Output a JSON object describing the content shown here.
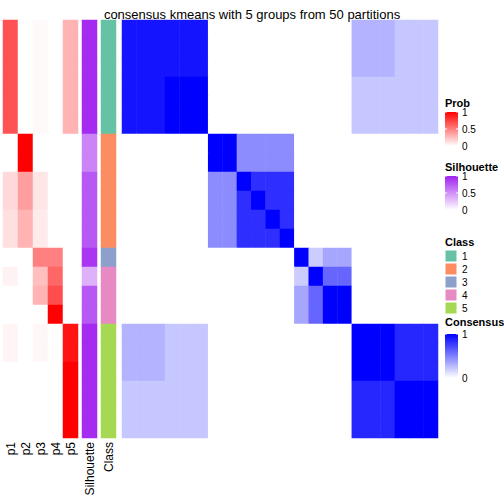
{
  "chart_data": {
    "type": "heatmap",
    "title": "consensus kmeans with 5 groups from 50 partitions",
    "columns": [
      "p1",
      "p2",
      "p3",
      "p4",
      "p5",
      "Silhouette",
      "Class"
    ],
    "prob": [
      [
        0.68,
        0,
        0.02,
        0,
        0.3
      ],
      [
        0.68,
        0,
        0.02,
        0,
        0.3
      ],
      [
        0.68,
        0,
        0.02,
        0,
        0.3
      ],
      [
        0.68,
        0,
        0.02,
        0,
        0.3
      ],
      [
        0.68,
        0,
        0.02,
        0,
        0.3
      ],
      [
        0.68,
        0,
        0.02,
        0,
        0.3
      ],
      [
        0,
        1,
        0,
        0,
        0
      ],
      [
        0,
        1,
        0,
        0,
        0
      ],
      [
        0.15,
        0.38,
        0.1,
        0,
        0
      ],
      [
        0.15,
        0.38,
        0.1,
        0,
        0
      ],
      [
        0.12,
        0.3,
        0.08,
        0,
        0
      ],
      [
        0.12,
        0.3,
        0.08,
        0,
        0
      ],
      [
        0,
        0,
        0.5,
        0.5,
        0
      ],
      [
        0.05,
        0,
        0.25,
        0.6,
        0
      ],
      [
        0,
        0,
        0.3,
        0.7,
        0
      ],
      [
        0,
        0,
        0,
        1,
        0
      ],
      [
        0.04,
        0,
        0.03,
        0,
        0.92
      ],
      [
        0.04,
        0,
        0.03,
        0,
        0.92
      ],
      [
        0,
        0,
        0,
        0,
        1
      ],
      [
        0,
        0,
        0,
        0,
        1
      ],
      [
        0,
        0,
        0,
        0,
        1
      ],
      [
        0,
        0,
        0,
        0,
        1
      ]
    ],
    "silhouette": [
      0.95,
      0.95,
      0.95,
      0.95,
      0.95,
      0.95,
      0.55,
      0.55,
      0.75,
      0.75,
      0.75,
      0.75,
      0.9,
      0.35,
      0.75,
      0.75,
      0.95,
      0.95,
      0.95,
      0.95,
      0.95,
      0.95
    ],
    "class": [
      1,
      1,
      1,
      1,
      1,
      1,
      2,
      2,
      2,
      2,
      2,
      2,
      3,
      4,
      4,
      4,
      5,
      5,
      5,
      5,
      5,
      5
    ],
    "consensus": [
      [
        0.92,
        0.92,
        0.92,
        0.92,
        0.92,
        0.92,
        0,
        0,
        0,
        0,
        0,
        0,
        0,
        0,
        0,
        0,
        0.3,
        0.3,
        0.3,
        0.22,
        0.22,
        0.22
      ],
      [
        0.92,
        0.92,
        0.92,
        0.92,
        0.92,
        0.92,
        0,
        0,
        0,
        0,
        0,
        0,
        0,
        0,
        0,
        0,
        0.3,
        0.3,
        0.3,
        0.22,
        0.22,
        0.22
      ],
      [
        0.92,
        0.92,
        0.92,
        0.92,
        0.92,
        0.92,
        0,
        0,
        0,
        0,
        0,
        0,
        0,
        0,
        0,
        0,
        0.3,
        0.3,
        0.3,
        0.22,
        0.22,
        0.22
      ],
      [
        0.92,
        0.92,
        0.92,
        1,
        1,
        1,
        0,
        0,
        0,
        0,
        0,
        0,
        0,
        0,
        0,
        0,
        0.22,
        0.22,
        0.22,
        0.22,
        0.22,
        0.22
      ],
      [
        0.92,
        0.92,
        0.92,
        1,
        1,
        1,
        0,
        0,
        0,
        0,
        0,
        0,
        0,
        0,
        0,
        0,
        0.22,
        0.22,
        0.22,
        0.22,
        0.22,
        0.22
      ],
      [
        0.92,
        0.92,
        0.92,
        1,
        1,
        1,
        0,
        0,
        0,
        0,
        0,
        0,
        0,
        0,
        0,
        0,
        0.22,
        0.22,
        0.22,
        0.22,
        0.22,
        0.22
      ],
      [
        0,
        0,
        0,
        0,
        0,
        0,
        1,
        1,
        0.45,
        0.45,
        0.45,
        0.45,
        0,
        0,
        0,
        0,
        0,
        0,
        0,
        0,
        0,
        0
      ],
      [
        0,
        0,
        0,
        0,
        0,
        0,
        1,
        1,
        0.45,
        0.45,
        0.45,
        0.45,
        0,
        0,
        0,
        0,
        0,
        0,
        0,
        0,
        0,
        0
      ],
      [
        0,
        0,
        0,
        0,
        0,
        0,
        0.45,
        0.45,
        1,
        0.82,
        0.82,
        0.82,
        0,
        0,
        0,
        0,
        0,
        0,
        0,
        0,
        0,
        0
      ],
      [
        0,
        0,
        0,
        0,
        0,
        0,
        0.45,
        0.45,
        0.82,
        1,
        0.82,
        0.82,
        0,
        0,
        0,
        0,
        0,
        0,
        0,
        0,
        0,
        0
      ],
      [
        0,
        0,
        0,
        0,
        0,
        0,
        0.45,
        0.45,
        0.82,
        0.82,
        1,
        0.82,
        0,
        0,
        0,
        0,
        0,
        0,
        0,
        0,
        0,
        0
      ],
      [
        0,
        0,
        0,
        0,
        0,
        0,
        0.45,
        0.45,
        0.82,
        0.82,
        0.82,
        1,
        0,
        0,
        0,
        0,
        0,
        0,
        0,
        0,
        0,
        0
      ],
      [
        0,
        0,
        0,
        0,
        0,
        0,
        0,
        0,
        0,
        0,
        0,
        0,
        1,
        0.2,
        0.35,
        0.35,
        0,
        0,
        0,
        0,
        0,
        0
      ],
      [
        0,
        0,
        0,
        0,
        0,
        0,
        0,
        0,
        0,
        0,
        0,
        0,
        0.2,
        1,
        0.6,
        0.6,
        0,
        0,
        0,
        0,
        0,
        0
      ],
      [
        0,
        0,
        0,
        0,
        0,
        0,
        0,
        0,
        0,
        0,
        0,
        0,
        0.35,
        0.6,
        1,
        1,
        0,
        0,
        0,
        0,
        0,
        0
      ],
      [
        0,
        0,
        0,
        0,
        0,
        0,
        0,
        0,
        0,
        0,
        0,
        0,
        0.35,
        0.6,
        1,
        1,
        0,
        0,
        0,
        0,
        0,
        0
      ],
      [
        0.3,
        0.3,
        0.3,
        0.22,
        0.22,
        0.22,
        0,
        0,
        0,
        0,
        0,
        0,
        0,
        0,
        0,
        0,
        1,
        1,
        1,
        0.85,
        0.85,
        0.85
      ],
      [
        0.3,
        0.3,
        0.3,
        0.22,
        0.22,
        0.22,
        0,
        0,
        0,
        0,
        0,
        0,
        0,
        0,
        0,
        0,
        1,
        1,
        1,
        0.85,
        0.85,
        0.85
      ],
      [
        0.3,
        0.3,
        0.3,
        0.22,
        0.22,
        0.22,
        0,
        0,
        0,
        0,
        0,
        0,
        0,
        0,
        0,
        0,
        1,
        1,
        1,
        0.85,
        0.85,
        0.85
      ],
      [
        0.22,
        0.22,
        0.22,
        0.22,
        0.22,
        0.22,
        0,
        0,
        0,
        0,
        0,
        0,
        0,
        0,
        0,
        0,
        0.85,
        0.85,
        0.85,
        1,
        1,
        1
      ],
      [
        0.22,
        0.22,
        0.22,
        0.22,
        0.22,
        0.22,
        0,
        0,
        0,
        0,
        0,
        0,
        0,
        0,
        0,
        0,
        0.85,
        0.85,
        0.85,
        1,
        1,
        1
      ],
      [
        0.22,
        0.22,
        0.22,
        0.22,
        0.22,
        0.22,
        0,
        0,
        0,
        0,
        0,
        0,
        0,
        0,
        0,
        0,
        0.85,
        0.85,
        0.85,
        1,
        1,
        1
      ]
    ],
    "prob_scale": {
      "title": "Prob",
      "range": [
        0,
        1
      ],
      "ticks": [
        0,
        0.5,
        1
      ],
      "color": "#ff0000"
    },
    "silhouette_scale": {
      "title": "Silhouette",
      "range": [
        0,
        1
      ],
      "ticks": [
        0,
        0.5,
        1
      ],
      "color": "#a020f0"
    },
    "class_legend": {
      "title": "Class",
      "labels": [
        1,
        2,
        3,
        4,
        5
      ],
      "colors": [
        "#66c2a5",
        "#fc8d62",
        "#8da0cb",
        "#e78ac3",
        "#a6d854"
      ]
    },
    "consensus_scale": {
      "title": "Consensus",
      "range": [
        0,
        1
      ],
      "ticks": [
        0,
        1
      ],
      "color": "#0000ff"
    }
  }
}
